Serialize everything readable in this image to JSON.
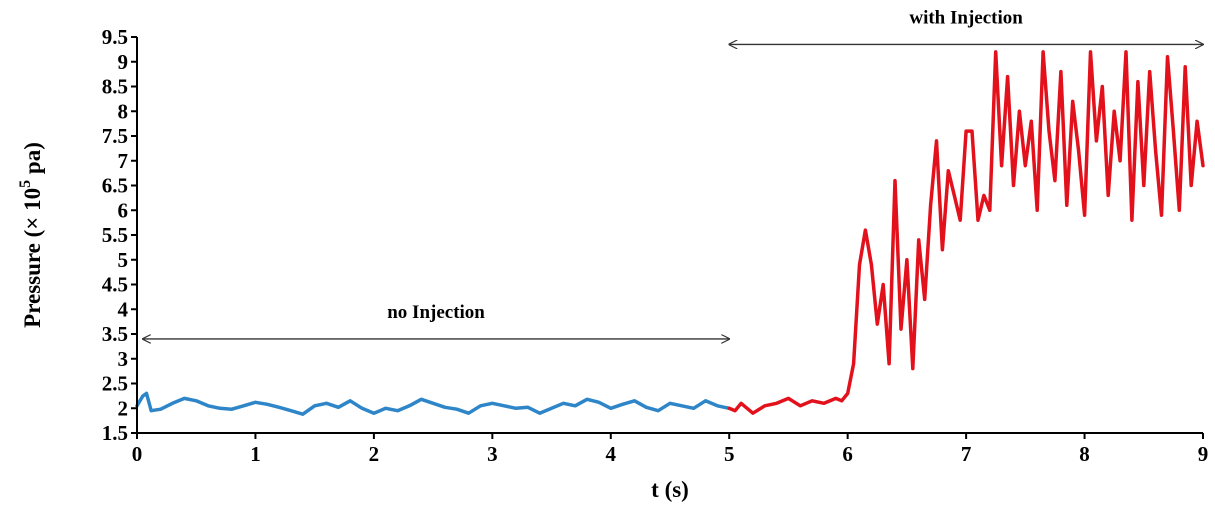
{
  "chart_data": {
    "type": "line",
    "xlabel": "t (s)",
    "ylabel": {
      "prefix": "Pressure (× 10",
      "superscript": "5",
      "suffix": " pa)"
    },
    "xlim": [
      0,
      9
    ],
    "ylim": [
      1.5,
      9.5
    ],
    "x_ticks": [
      "0",
      "1",
      "2",
      "3",
      "4",
      "5",
      "6",
      "7",
      "8",
      "9"
    ],
    "y_ticks": [
      "1.5",
      "2",
      "2.5",
      "3",
      "3.5",
      "4",
      "4.5",
      "5",
      "5.5",
      "6",
      "6.5",
      "7",
      "7.5",
      "8",
      "8.5",
      "9",
      "9.5"
    ],
    "grid": false,
    "legend": "none",
    "series": [
      {
        "color": "#2e86c8",
        "x": [
          0.0,
          0.05,
          0.08,
          0.12,
          0.2,
          0.3,
          0.4,
          0.5,
          0.6,
          0.7,
          0.8,
          0.9,
          1.0,
          1.1,
          1.2,
          1.3,
          1.4,
          1.5,
          1.6,
          1.7,
          1.8,
          1.9,
          2.0,
          2.1,
          2.2,
          2.3,
          2.4,
          2.5,
          2.6,
          2.7,
          2.8,
          2.9,
          3.0,
          3.1,
          3.2,
          3.3,
          3.4,
          3.5,
          3.6,
          3.7,
          3.8,
          3.9,
          4.0,
          4.1,
          4.2,
          4.3,
          4.4,
          4.5,
          4.6,
          4.7,
          4.8,
          4.9,
          5.0
        ],
        "y": [
          2.05,
          2.25,
          2.3,
          1.95,
          1.98,
          2.1,
          2.2,
          2.15,
          2.05,
          2.0,
          1.98,
          2.05,
          2.12,
          2.08,
          2.02,
          1.95,
          1.88,
          2.05,
          2.1,
          2.02,
          2.15,
          2.0,
          1.9,
          2.0,
          1.95,
          2.05,
          2.18,
          2.1,
          2.02,
          1.98,
          1.9,
          2.05,
          2.1,
          2.05,
          2.0,
          2.02,
          1.9,
          2.0,
          2.1,
          2.05,
          2.18,
          2.12,
          2.0,
          2.08,
          2.15,
          2.02,
          1.95,
          2.1,
          2.05,
          2.0,
          2.15,
          2.05,
          2.0
        ]
      },
      {
        "color": "#e3111b",
        "x": [
          5.0,
          5.05,
          5.1,
          5.2,
          5.3,
          5.4,
          5.5,
          5.6,
          5.7,
          5.8,
          5.9,
          5.95,
          6.0,
          6.05,
          6.1,
          6.15,
          6.2,
          6.25,
          6.3,
          6.35,
          6.4,
          6.45,
          6.5,
          6.55,
          6.6,
          6.65,
          6.7,
          6.75,
          6.8,
          6.85,
          6.9,
          6.95,
          7.0,
          7.05,
          7.1,
          7.15,
          7.2,
          7.25,
          7.3,
          7.35,
          7.4,
          7.45,
          7.5,
          7.55,
          7.6,
          7.65,
          7.7,
          7.75,
          7.8,
          7.85,
          7.9,
          7.95,
          8.0,
          8.05,
          8.1,
          8.15,
          8.2,
          8.25,
          8.3,
          8.35,
          8.4,
          8.45,
          8.5,
          8.55,
          8.6,
          8.65,
          8.7,
          8.75,
          8.8,
          8.85,
          8.9,
          8.95,
          9.0
        ],
        "y": [
          2.0,
          1.95,
          2.1,
          1.9,
          2.05,
          2.1,
          2.2,
          2.05,
          2.15,
          2.1,
          2.2,
          2.15,
          2.3,
          2.9,
          4.9,
          5.6,
          4.9,
          3.7,
          4.5,
          2.9,
          6.6,
          3.6,
          5.0,
          2.8,
          5.4,
          4.2,
          6.1,
          7.4,
          5.2,
          6.8,
          6.3,
          5.8,
          7.6,
          7.6,
          5.8,
          6.3,
          6.0,
          9.2,
          6.9,
          8.7,
          6.5,
          8.0,
          6.9,
          7.8,
          6.0,
          9.2,
          7.6,
          6.6,
          8.8,
          6.1,
          8.2,
          7.2,
          5.9,
          9.2,
          7.4,
          8.5,
          6.3,
          8.0,
          7.0,
          9.2,
          5.8,
          8.6,
          6.5,
          8.8,
          7.2,
          5.9,
          9.1,
          7.6,
          6.0,
          8.9,
          6.5,
          7.8,
          6.9
        ]
      }
    ],
    "annotations": [
      {
        "text": "no Injection",
        "x_start": 0.05,
        "x_end": 5.0,
        "y": 3.4
      },
      {
        "text": "with  Injection",
        "x_start": 5.0,
        "x_end": 9.0,
        "y": 9.35
      }
    ]
  }
}
